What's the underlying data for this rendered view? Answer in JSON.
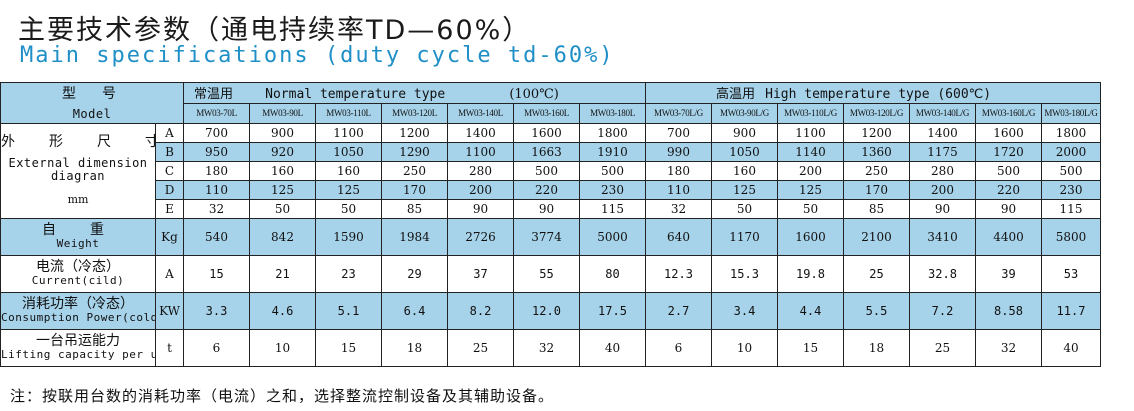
{
  "title_cn": "主要技术参数（通电持续率TD—60%）",
  "title_en": "Main specifications (duty cycle td-60%)",
  "header": {
    "type_cn": "型　号",
    "type_en": "Model",
    "normal_cn": "常温用",
    "normal_en": "Normal temperature type",
    "normal_temp": "(100℃)",
    "high_cn": "高温用",
    "high_en": "High temperature type (600℃)"
  },
  "models": [
    "MW03-70L",
    "MW03-90L",
    "MW03-110L",
    "MW03-120L",
    "MW03-140L",
    "MW03-160L",
    "MW03-180L",
    "MW03-70L/G",
    "MW03-90L/G",
    "MW03-110L/G",
    "MW03-120L/G",
    "MW03-140L/G",
    "MW03-160L/G",
    "MW03-180L/G"
  ],
  "dimension": {
    "label_cn": "外　形　尺　寸",
    "label_en": "External dimension diagran",
    "unit": "mm",
    "rows": [
      {
        "key": "A",
        "values": [
          "700",
          "900",
          "1100",
          "1200",
          "1400",
          "1600",
          "1800",
          "700",
          "900",
          "1100",
          "1200",
          "1400",
          "1600",
          "1800"
        ]
      },
      {
        "key": "B",
        "values": [
          "950",
          "920",
          "1050",
          "1290",
          "1100",
          "1663",
          "1910",
          "990",
          "1050",
          "1140",
          "1360",
          "1175",
          "1720",
          "2000"
        ]
      },
      {
        "key": "C",
        "values": [
          "180",
          "160",
          "160",
          "250",
          "280",
          "500",
          "500",
          "180",
          "160",
          "200",
          "250",
          "280",
          "500",
          "500"
        ]
      },
      {
        "key": "D",
        "values": [
          "110",
          "125",
          "125",
          "170",
          "200",
          "220",
          "230",
          "110",
          "125",
          "125",
          "170",
          "200",
          "220",
          "230"
        ]
      },
      {
        "key": "E",
        "values": [
          "32",
          "50",
          "50",
          "85",
          "90",
          "90",
          "115",
          "32",
          "50",
          "50",
          "85",
          "90",
          "90",
          "115"
        ]
      }
    ]
  },
  "weight": {
    "label_cn": "自　重",
    "label_en": "Weight",
    "unit": "Kg",
    "values": [
      "540",
      "842",
      "1590",
      "1984",
      "2726",
      "3774",
      "5000",
      "640",
      "1170",
      "1600",
      "2100",
      "3410",
      "4400",
      "5800"
    ]
  },
  "current": {
    "label_cn": "电流（冷态）",
    "label_en": "Current(cild)",
    "unit": "A",
    "values": [
      "15",
      "21",
      "23",
      "29",
      "37",
      "55",
      "80",
      "12.3",
      "15.3",
      "19.8",
      "25",
      "32.8",
      "39",
      "53"
    ]
  },
  "power": {
    "label_cn": "消耗功率（冷态）",
    "label_en": "Consumption Power(cold)",
    "unit": "KW",
    "values": [
      "3.3",
      "4.6",
      "5.1",
      "6.4",
      "8.2",
      "12.0",
      "17.5",
      "2.7",
      "3.4",
      "4.4",
      "5.5",
      "7.2",
      "8.58",
      "11.7"
    ]
  },
  "lifting": {
    "label_cn": "一台吊运能力",
    "label_en": "Lifting capacity per unit",
    "unit": "t",
    "values": [
      "6",
      "10",
      "15",
      "18",
      "25",
      "32",
      "40",
      "6",
      "10",
      "15",
      "18",
      "25",
      "32",
      "40"
    ]
  },
  "note_cn": "注：按联用台数的消耗功率（电流）之和，选择整流控制设备及其辅助设备。"
}
